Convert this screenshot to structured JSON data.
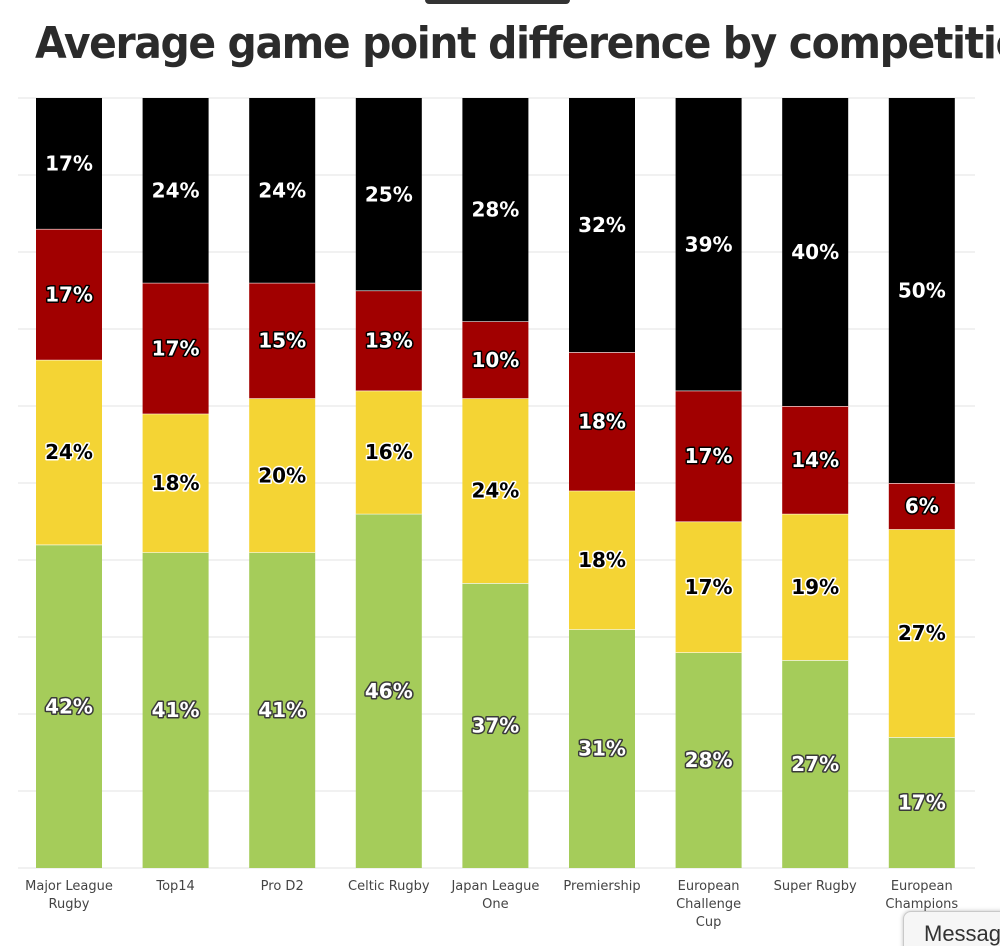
{
  "chart_data": {
    "type": "bar",
    "stacked": true,
    "title": "Average game point difference by competition",
    "xlabel": "",
    "ylabel": "",
    "ylim": [
      0,
      100
    ],
    "grid": true,
    "categories": [
      [
        "Major League",
        "Rugby"
      ],
      [
        "Top14"
      ],
      [
        "Pro D2"
      ],
      [
        "Celtic Rugby"
      ],
      [
        "Japan League",
        "One"
      ],
      [
        "Premiership"
      ],
      [
        "European",
        "Challenge",
        "Cup"
      ],
      [
        "Super Rugby"
      ],
      [
        "European",
        "Champions"
      ]
    ],
    "series": [
      {
        "name": "green",
        "color": "#a5cc5a",
        "values": [
          42,
          41,
          41,
          46,
          37,
          31,
          28,
          27,
          17
        ]
      },
      {
        "name": "yellow",
        "color": "#f4d434",
        "values": [
          24,
          18,
          20,
          16,
          24,
          18,
          17,
          19,
          27
        ]
      },
      {
        "name": "red",
        "color": "#a10000",
        "values": [
          17,
          17,
          15,
          13,
          10,
          18,
          17,
          14,
          6
        ]
      },
      {
        "name": "black",
        "color": "#000000",
        "values": [
          17,
          24,
          24,
          25,
          28,
          32,
          39,
          40,
          50
        ]
      }
    ],
    "labels": [
      [
        "42%",
        "41%",
        "41%",
        "46%",
        "37%",
        "31%",
        "28%",
        "27%",
        "17%"
      ],
      [
        "24%",
        "18%",
        "20%",
        "16%",
        "24%",
        "18%",
        "17%",
        "19%",
        "27%"
      ],
      [
        "17%",
        "17%",
        "15%",
        "13%",
        "10%",
        "18%",
        "17%",
        "14%",
        "6%"
      ],
      [
        "17%",
        "24%",
        "24%",
        "25%",
        "28%",
        "32%",
        "39%",
        "40%",
        "50%"
      ]
    ]
  },
  "overlay": {
    "message_label": "Messages"
  }
}
